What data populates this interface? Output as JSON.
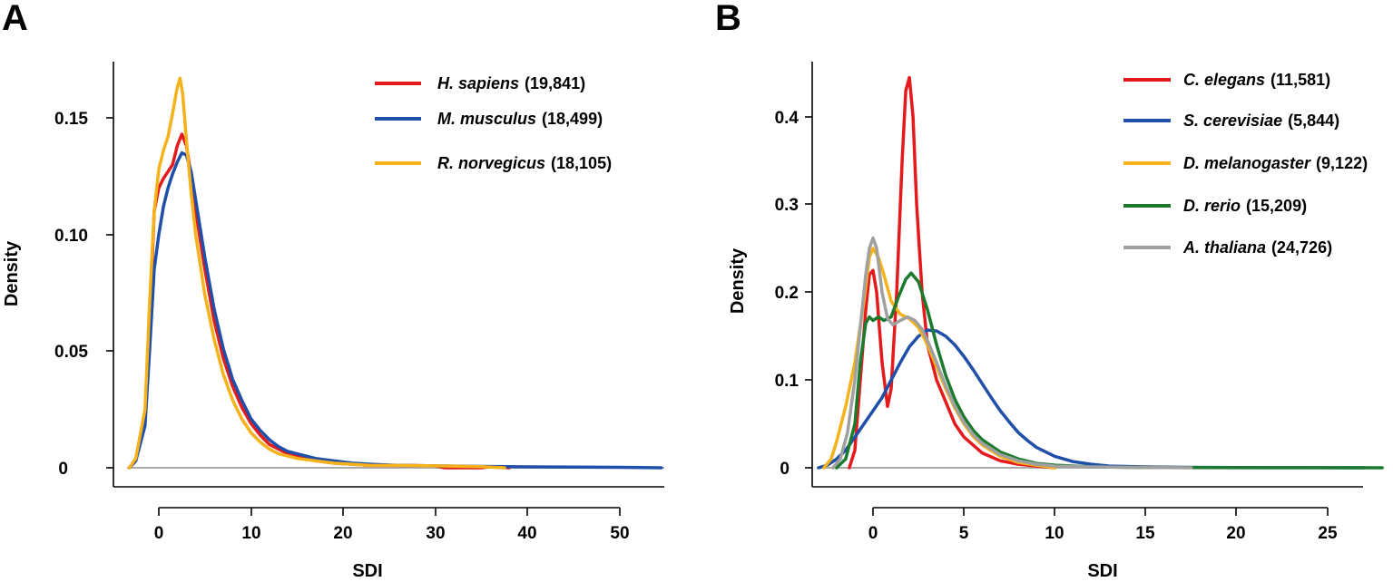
{
  "chart_data": [
    {
      "panel": "A",
      "type": "line",
      "title": "",
      "xlabel": "SDI",
      "ylabel": "Density",
      "xlim": [
        -5,
        56
      ],
      "ylim": [
        -0.01,
        0.175
      ],
      "xticks": [
        0,
        10,
        20,
        30,
        40,
        50
      ],
      "yticks": [
        0,
        0.05,
        0.1,
        0.15
      ],
      "ytick_labels": [
        "0",
        "0.05",
        "0.10",
        "0.15"
      ],
      "legend_position": "top-right",
      "baseline_color": "#aaaaaa",
      "series": [
        {
          "name": "H. sapiens",
          "count": "(19,841)",
          "color": "#e41a1c",
          "x": [
            -3.2,
            -2.5,
            -1.5,
            -1,
            -0.5,
            0,
            0.5,
            1,
            1.5,
            2,
            2.5,
            3,
            3.5,
            4,
            5,
            6,
            7,
            8,
            9,
            10,
            11,
            12,
            13,
            14,
            15,
            17,
            19,
            21,
            23,
            26,
            30,
            31,
            35,
            36,
            38
          ],
          "y": [
            0,
            0.003,
            0.02,
            0.06,
            0.11,
            0.12,
            0.124,
            0.127,
            0.13,
            0.138,
            0.143,
            0.138,
            0.125,
            0.11,
            0.085,
            0.063,
            0.047,
            0.035,
            0.026,
            0.019,
            0.014,
            0.01,
            0.008,
            0.006,
            0.005,
            0.003,
            0.002,
            0.0015,
            0.001,
            0.001,
            0.0008,
            0,
            0,
            0.0005,
            0
          ]
        },
        {
          "name": "M. musculus",
          "count": "(18,499)",
          "color": "#1f4fa8",
          "x": [
            -3.2,
            -2.5,
            -1.5,
            -1,
            -0.5,
            0,
            0.5,
            1,
            1.5,
            2,
            2.5,
            3,
            3.5,
            4,
            5,
            6,
            7,
            8,
            9,
            10,
            11,
            12,
            13,
            14,
            15,
            17,
            19,
            21,
            23,
            26,
            30,
            35,
            40,
            45,
            50,
            54.5
          ],
          "y": [
            0,
            0.003,
            0.018,
            0.05,
            0.085,
            0.1,
            0.112,
            0.12,
            0.126,
            0.131,
            0.135,
            0.134,
            0.127,
            0.115,
            0.09,
            0.068,
            0.051,
            0.038,
            0.029,
            0.021,
            0.016,
            0.012,
            0.009,
            0.007,
            0.006,
            0.004,
            0.003,
            0.002,
            0.0015,
            0.001,
            0.0008,
            0.0006,
            0.0004,
            0.0003,
            0.0002,
            0
          ]
        },
        {
          "name": "R. norvegicus",
          "count": "(18,105)",
          "color": "#f5b21b",
          "x": [
            -3.2,
            -2.5,
            -1.5,
            -1,
            -0.5,
            0,
            0.5,
            1,
            1.5,
            2,
            2.3,
            2.6,
            3,
            3.5,
            4,
            5,
            6,
            7,
            8,
            9,
            10,
            11,
            12,
            13,
            14,
            15,
            17,
            19,
            21,
            23,
            26,
            30,
            35,
            37.5
          ],
          "y": [
            0,
            0.004,
            0.025,
            0.07,
            0.11,
            0.128,
            0.136,
            0.142,
            0.152,
            0.163,
            0.167,
            0.16,
            0.14,
            0.118,
            0.1,
            0.074,
            0.055,
            0.04,
            0.029,
            0.021,
            0.015,
            0.011,
            0.008,
            0.006,
            0.005,
            0.004,
            0.003,
            0.002,
            0.0015,
            0.001,
            0.001,
            0.0008,
            0.0005,
            0
          ]
        }
      ]
    },
    {
      "panel": "B",
      "type": "line",
      "title": "",
      "xlabel": "SDI",
      "ylabel": "Density",
      "xlim": [
        -3,
        28
      ],
      "ylim": [
        -0.02,
        0.47
      ],
      "xticks": [
        0,
        5,
        10,
        15,
        20,
        25
      ],
      "yticks": [
        0,
        0.1,
        0.2,
        0.3,
        0.4
      ],
      "ytick_labels": [
        "0",
        "0.1",
        "0.2",
        "0.3",
        "0.4"
      ],
      "legend_position": "top-right",
      "baseline_color": "#aaaaaa",
      "series": [
        {
          "name": "C. elegans",
          "count": "(11,581)",
          "color": "#e41a1c",
          "x": [
            -1.3,
            -1,
            -0.7,
            -0.4,
            -0.2,
            0,
            0.2,
            0.5,
            0.8,
            1,
            1.3,
            1.6,
            1.8,
            2,
            2.2,
            2.4,
            2.7,
            3,
            3.5,
            4,
            4.5,
            5,
            6,
            7,
            8,
            9,
            10
          ],
          "y": [
            0,
            0.02,
            0.1,
            0.18,
            0.22,
            0.225,
            0.2,
            0.12,
            0.07,
            0.09,
            0.2,
            0.35,
            0.43,
            0.445,
            0.4,
            0.3,
            0.2,
            0.14,
            0.1,
            0.075,
            0.05,
            0.035,
            0.017,
            0.008,
            0.004,
            0.002,
            0
          ]
        },
        {
          "name": "S. cerevisiae",
          "count": "(5,844)",
          "color": "#1f4fa8",
          "x": [
            -3,
            -2.5,
            -2,
            -1.5,
            -1,
            -0.5,
            0,
            0.5,
            1,
            1.5,
            2,
            2.5,
            3,
            3.5,
            4,
            4.5,
            5,
            5.5,
            6,
            6.5,
            7,
            7.5,
            8,
            8.5,
            9,
            10,
            11,
            12,
            13,
            15,
            17,
            20,
            24,
            27
          ],
          "y": [
            0,
            0.003,
            0.01,
            0.02,
            0.035,
            0.05,
            0.065,
            0.08,
            0.1,
            0.12,
            0.138,
            0.15,
            0.157,
            0.156,
            0.15,
            0.14,
            0.127,
            0.112,
            0.096,
            0.08,
            0.065,
            0.052,
            0.04,
            0.031,
            0.023,
            0.013,
            0.007,
            0.004,
            0.002,
            0.001,
            0.0005,
            0.0002,
            0.0001,
            0
          ]
        },
        {
          "name": "D. melanogaster",
          "count": "(9,122)",
          "color": "#f5b21b",
          "x": [
            -2.7,
            -2.3,
            -2,
            -1.5,
            -1,
            -0.5,
            -0.2,
            0,
            0.3,
            0.6,
            1,
            1.5,
            2,
            2.5,
            3,
            3.5,
            4,
            4.5,
            5,
            5.5,
            6,
            7,
            8,
            9,
            10
          ],
          "y": [
            0,
            0.01,
            0.03,
            0.07,
            0.12,
            0.19,
            0.24,
            0.25,
            0.24,
            0.22,
            0.19,
            0.175,
            0.17,
            0.16,
            0.14,
            0.115,
            0.09,
            0.068,
            0.05,
            0.036,
            0.026,
            0.013,
            0.006,
            0.003,
            0
          ]
        },
        {
          "name": "D. rerio",
          "count": "(15,209)",
          "color": "#1b7a2e",
          "x": [
            -2,
            -1.5,
            -1,
            -0.7,
            -0.4,
            -0.2,
            0,
            0.3,
            0.6,
            1,
            1.4,
            1.8,
            2.1,
            2.5,
            3,
            3.5,
            4,
            4.5,
            5,
            5.5,
            6,
            7,
            8,
            9,
            10,
            12,
            14,
            17,
            20,
            24,
            28
          ],
          "y": [
            0,
            0.01,
            0.05,
            0.12,
            0.165,
            0.172,
            0.168,
            0.172,
            0.168,
            0.172,
            0.195,
            0.215,
            0.222,
            0.212,
            0.18,
            0.14,
            0.105,
            0.078,
            0.058,
            0.043,
            0.032,
            0.018,
            0.01,
            0.005,
            0.003,
            0.001,
            0.0005,
            0.0002,
            0.0001,
            0.0001,
            0
          ]
        },
        {
          "name": "A. thaliana",
          "count": "(24,726)",
          "color": "#a0a0a0",
          "x": [
            -2.2,
            -1.8,
            -1.4,
            -1,
            -0.7,
            -0.4,
            -0.2,
            0,
            0.2,
            0.5,
            0.8,
            1.1,
            1.5,
            1.9,
            2.3,
            2.7,
            3.1,
            3.5,
            4,
            4.5,
            5,
            5.5,
            6,
            7,
            8,
            9,
            10,
            12,
            14.5,
            17.5
          ],
          "y": [
            0,
            0.01,
            0.04,
            0.1,
            0.16,
            0.22,
            0.25,
            0.262,
            0.25,
            0.2,
            0.17,
            0.163,
            0.168,
            0.172,
            0.168,
            0.158,
            0.14,
            0.12,
            0.093,
            0.07,
            0.052,
            0.038,
            0.028,
            0.015,
            0.008,
            0.004,
            0.002,
            0.001,
            0.0005,
            0
          ]
        }
      ]
    }
  ]
}
